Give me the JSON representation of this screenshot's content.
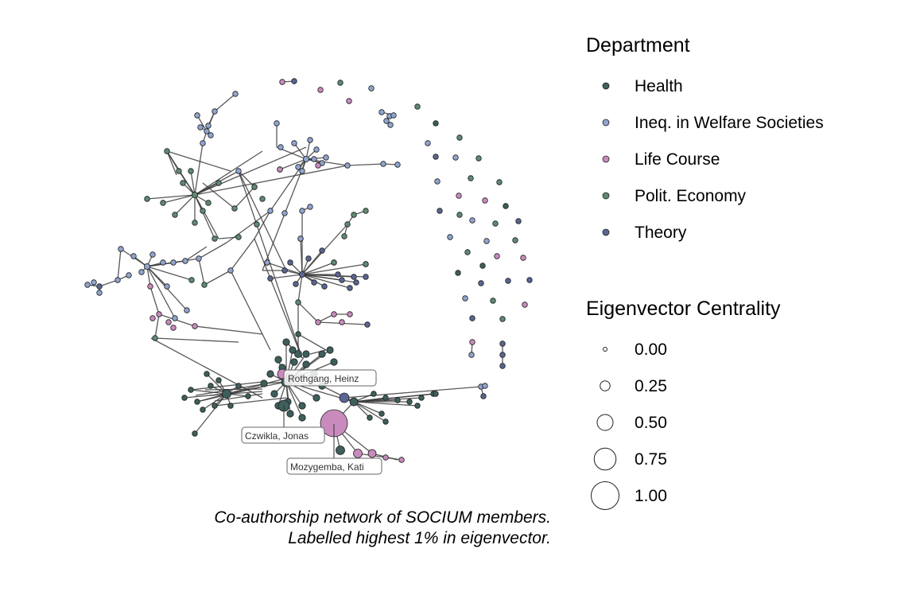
{
  "caption": {
    "line1": "Co-authorship network of SOCIUM members.",
    "line2": "Labelled highest 1% in eigenvector."
  },
  "legend": {
    "department": {
      "title": "Department",
      "items": [
        {
          "label": "Health",
          "color": "#3e5f5c"
        },
        {
          "label": "Ineq. in Welfare Societies",
          "color": "#8fa5cf"
        },
        {
          "label": "Life Course",
          "color": "#c98bbd"
        },
        {
          "label": "Polit. Economy",
          "color": "#5e8a72"
        },
        {
          "label": "Theory",
          "color": "#5b6592"
        }
      ]
    },
    "centrality": {
      "title": "Eigenvector Centrality",
      "items": [
        {
          "label": "0.00",
          "value": 0.0
        },
        {
          "label": "0.25",
          "value": 0.25
        },
        {
          "label": "0.50",
          "value": 0.5
        },
        {
          "label": "0.75",
          "value": 0.75
        },
        {
          "label": "1.00",
          "value": 1.0
        }
      ]
    }
  },
  "labels": {
    "rothgang": "Rothgang, Heinz",
    "czwikla": "Czwikla, Jonas",
    "mozygemba": "Mozygemba, Kati"
  }
}
